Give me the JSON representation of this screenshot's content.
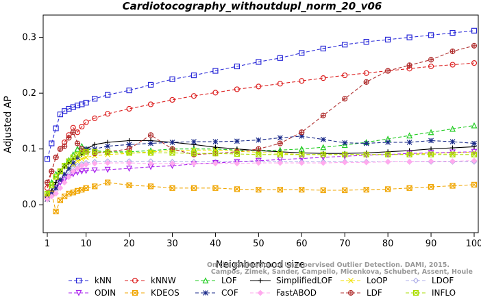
{
  "chart_data": {
    "type": "line",
    "title": "Cardiotocography_withoutdupl_norm_20_v06",
    "xlabel": "Neighborhood size",
    "ylabel": "Adjusted AP",
    "xlim": [
      1,
      100
    ],
    "ylim": [
      -0.05,
      0.34
    ],
    "xticks": [
      1,
      10,
      20,
      30,
      40,
      50,
      60,
      70,
      80,
      90,
      100
    ],
    "yticks": [
      0.0,
      0.1,
      0.2,
      0.3
    ],
    "ytick_labels": [
      "0.0",
      "0.1",
      "0.2",
      "0.3"
    ],
    "grid": false,
    "legend_position": "bottom",
    "watermark": [
      "Campos, Zimek, Sander, Campello, Micenkova, Schubert, Assent, Houle",
      "On the Evaluation of Unsupervised Outlier Detection. DAMI, 2015."
    ],
    "series": [
      {
        "name": "kNN",
        "color": "#2a2ad8",
        "marker": "square",
        "dash": "5,3",
        "x": [
          1,
          2,
          3,
          4,
          5,
          6,
          7,
          8,
          9,
          10,
          12,
          15,
          20,
          25,
          30,
          35,
          40,
          45,
          50,
          55,
          60,
          65,
          70,
          75,
          80,
          85,
          90,
          95,
          100
        ],
        "y": [
          0.082,
          0.11,
          0.137,
          0.162,
          0.168,
          0.172,
          0.175,
          0.178,
          0.18,
          0.183,
          0.19,
          0.197,
          0.205,
          0.215,
          0.225,
          0.232,
          0.24,
          0.248,
          0.256,
          0.263,
          0.272,
          0.28,
          0.287,
          0.292,
          0.296,
          0.3,
          0.304,
          0.308,
          0.312
        ]
      },
      {
        "name": "kNNW",
        "color": "#dd2222",
        "marker": "circle",
        "dash": "5,3",
        "x": [
          1,
          2,
          3,
          4,
          5,
          6,
          7,
          8,
          9,
          10,
          12,
          15,
          20,
          25,
          30,
          35,
          40,
          45,
          50,
          55,
          60,
          65,
          70,
          75,
          80,
          85,
          90,
          95,
          100
        ],
        "y": [
          0.03,
          0.06,
          0.085,
          0.1,
          0.112,
          0.125,
          0.138,
          0.13,
          0.14,
          0.148,
          0.155,
          0.163,
          0.172,
          0.18,
          0.188,
          0.195,
          0.201,
          0.207,
          0.212,
          0.217,
          0.222,
          0.227,
          0.232,
          0.236,
          0.24,
          0.244,
          0.248,
          0.251,
          0.254
        ]
      },
      {
        "name": "LOF",
        "color": "#22cc22",
        "marker": "triangle",
        "dash": "5,3",
        "x": [
          1,
          2,
          3,
          4,
          5,
          6,
          7,
          8,
          9,
          10,
          12,
          15,
          20,
          25,
          30,
          35,
          40,
          45,
          50,
          55,
          60,
          65,
          70,
          75,
          80,
          85,
          90,
          95,
          100
        ],
        "y": [
          0.02,
          0.04,
          0.055,
          0.06,
          0.07,
          0.08,
          0.09,
          0.1,
          0.105,
          0.1,
          0.097,
          0.095,
          0.095,
          0.097,
          0.1,
          0.1,
          0.1,
          0.098,
          0.097,
          0.098,
          0.1,
          0.103,
          0.107,
          0.112,
          0.118,
          0.124,
          0.13,
          0.136,
          0.142
        ]
      },
      {
        "name": "SimplifiedLOF",
        "color": "#000000",
        "marker": "plus",
        "dash": "",
        "x": [
          1,
          2,
          3,
          4,
          5,
          6,
          7,
          8,
          9,
          10,
          12,
          15,
          20,
          25,
          30,
          35,
          40,
          45,
          50,
          55,
          60,
          65,
          70,
          75,
          80,
          85,
          90,
          95,
          100
        ],
        "y": [
          0.015,
          0.025,
          0.04,
          0.06,
          0.068,
          0.075,
          0.082,
          0.085,
          0.09,
          0.1,
          0.108,
          0.112,
          0.115,
          0.115,
          0.112,
          0.108,
          0.103,
          0.1,
          0.097,
          0.095,
          0.093,
          0.092,
          0.092,
          0.093,
          0.095,
          0.097,
          0.1,
          0.102,
          0.104
        ]
      },
      {
        "name": "LoOP",
        "color": "#f0e000",
        "marker": "x",
        "dash": "5,3",
        "x": [
          1,
          2,
          3,
          4,
          5,
          6,
          7,
          8,
          9,
          10,
          12,
          15,
          20,
          25,
          30,
          35,
          40,
          45,
          50,
          55,
          60,
          65,
          70,
          75,
          80,
          85,
          90,
          95,
          100
        ],
        "y": [
          0.01,
          0.02,
          0.03,
          0.045,
          0.055,
          0.065,
          0.072,
          0.078,
          0.082,
          0.085,
          0.088,
          0.09,
          0.092,
          0.095,
          0.097,
          0.098,
          0.098,
          0.096,
          0.094,
          0.092,
          0.09,
          0.09,
          0.09,
          0.09,
          0.09,
          0.091,
          0.092,
          0.093,
          0.094
        ]
      },
      {
        "name": "LDOF",
        "color": "#b0b0e8",
        "marker": "diamond",
        "dash": "5,3",
        "x": [
          1,
          2,
          3,
          4,
          5,
          6,
          7,
          8,
          9,
          10,
          12,
          15,
          20,
          25,
          30,
          35,
          40,
          45,
          50,
          55,
          60,
          65,
          70,
          75,
          80,
          85,
          90,
          95,
          100
        ],
        "y": [
          0.01,
          0.02,
          0.03,
          0.04,
          0.05,
          0.058,
          0.065,
          0.07,
          0.073,
          0.075,
          0.077,
          0.078,
          0.078,
          0.078,
          0.077,
          0.077,
          0.077,
          0.077,
          0.077,
          0.077,
          0.077,
          0.077,
          0.077,
          0.077,
          0.077,
          0.077,
          0.077,
          0.077,
          0.077
        ]
      },
      {
        "name": "ODIN",
        "color": "#aa22ee",
        "marker": "triangle-down",
        "dash": "5,3",
        "x": [
          1,
          2,
          3,
          4,
          5,
          6,
          7,
          8,
          9,
          10,
          12,
          15,
          20,
          25,
          30,
          35,
          40,
          45,
          50,
          55,
          60,
          65,
          70,
          75,
          80,
          85,
          90,
          95,
          100
        ],
        "y": [
          0.01,
          0.02,
          0.03,
          0.04,
          0.045,
          0.05,
          0.055,
          0.058,
          0.06,
          0.061,
          0.062,
          0.063,
          0.065,
          0.068,
          0.07,
          0.073,
          0.075,
          0.077,
          0.079,
          0.081,
          0.083,
          0.085,
          0.087,
          0.089,
          0.09,
          0.092,
          0.093,
          0.094,
          0.095
        ]
      },
      {
        "name": "KDEOS",
        "color": "#f0a500",
        "marker": "square-x",
        "dash": "5,3",
        "x": [
          1,
          2,
          3,
          4,
          5,
          6,
          7,
          8,
          9,
          10,
          12,
          15,
          20,
          25,
          30,
          35,
          40,
          45,
          50,
          55,
          60,
          65,
          70,
          75,
          80,
          85,
          90,
          95,
          100
        ],
        "y": [
          0.015,
          0.02,
          -0.012,
          0.008,
          0.015,
          0.02,
          0.022,
          0.025,
          0.027,
          0.03,
          0.033,
          0.04,
          0.035,
          0.033,
          0.03,
          0.03,
          0.03,
          0.028,
          0.027,
          0.027,
          0.027,
          0.026,
          0.026,
          0.027,
          0.028,
          0.03,
          0.032,
          0.034,
          0.036
        ]
      },
      {
        "name": "COF",
        "color": "#1a2a8a",
        "marker": "asterisk",
        "dash": "5,3",
        "x": [
          1,
          2,
          3,
          4,
          5,
          6,
          7,
          8,
          9,
          10,
          12,
          15,
          20,
          25,
          30,
          35,
          40,
          45,
          50,
          55,
          60,
          65,
          70,
          75,
          80,
          85,
          90,
          95,
          100
        ],
        "y": [
          0.01,
          0.02,
          0.03,
          0.045,
          0.055,
          0.065,
          0.075,
          0.085,
          0.095,
          0.1,
          0.1,
          0.105,
          0.108,
          0.11,
          0.112,
          0.113,
          0.113,
          0.114,
          0.116,
          0.12,
          0.123,
          0.117,
          0.111,
          0.11,
          0.112,
          0.112,
          0.115,
          0.113,
          0.11
        ]
      },
      {
        "name": "FastABOD",
        "color": "#ffaaee",
        "marker": "diamond-filled",
        "dash": "5,3",
        "x": [
          1,
          2,
          3,
          4,
          5,
          6,
          7,
          8,
          9,
          10,
          12,
          15,
          20,
          25,
          30,
          35,
          40,
          45,
          50,
          55,
          60,
          65,
          70,
          75,
          80,
          85,
          90,
          95,
          100
        ],
        "y": [
          0.01,
          0.015,
          0.02,
          0.03,
          0.04,
          0.05,
          0.06,
          0.065,
          0.07,
          0.072,
          0.074,
          0.075,
          0.075,
          0.074,
          0.074,
          0.074,
          0.074,
          0.074,
          0.075,
          0.075,
          0.075,
          0.075,
          0.076,
          0.076,
          0.077,
          0.077,
          0.078,
          0.078,
          0.079
        ]
      },
      {
        "name": "LDF",
        "color": "#b03030",
        "marker": "circle-plus",
        "dash": "5,3",
        "x": [
          1,
          2,
          3,
          4,
          5,
          6,
          7,
          8,
          9,
          10,
          12,
          15,
          20,
          25,
          30,
          35,
          40,
          45,
          50,
          55,
          60,
          65,
          70,
          75,
          80,
          85,
          90,
          95,
          100
        ],
        "y": [
          0.04,
          0.06,
          0.085,
          0.1,
          0.105,
          0.12,
          0.13,
          0.11,
          0.1,
          0.095,
          0.092,
          0.095,
          0.1,
          0.125,
          0.1,
          0.09,
          0.092,
          0.095,
          0.1,
          0.11,
          0.13,
          0.16,
          0.19,
          0.22,
          0.24,
          0.25,
          0.26,
          0.275,
          0.285
        ]
      },
      {
        "name": "INFLO",
        "color": "#aadd00",
        "marker": "square-x",
        "dash": "5,3",
        "x": [
          1,
          2,
          3,
          4,
          5,
          6,
          7,
          8,
          9,
          10,
          12,
          15,
          20,
          25,
          30,
          35,
          40,
          45,
          50,
          55,
          60,
          65,
          70,
          75,
          80,
          85,
          90,
          95,
          100
        ],
        "y": [
          0.02,
          0.035,
          0.05,
          0.06,
          0.07,
          0.078,
          0.085,
          0.09,
          0.093,
          0.095,
          0.095,
          0.094,
          0.093,
          0.093,
          0.093,
          0.092,
          0.092,
          0.091,
          0.09,
          0.09,
          0.09,
          0.09,
          0.09,
          0.09,
          0.09,
          0.09,
          0.09,
          0.09,
          0.09
        ]
      }
    ]
  }
}
